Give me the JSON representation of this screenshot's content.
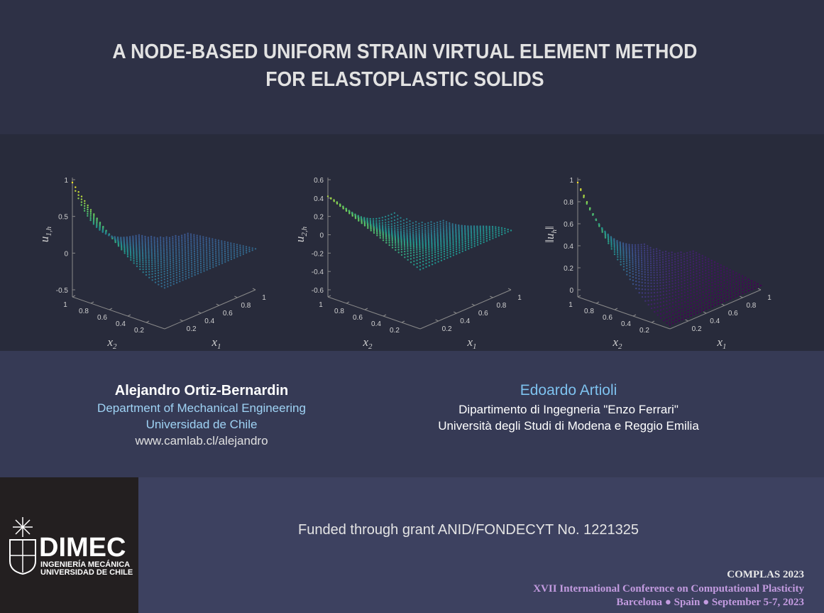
{
  "title": [
    "A NODE-BASED UNIFORM STRAIN VIRTUAL ELEMENT METHOD",
    "FOR ELASTOPLASTIC SOLIDS"
  ],
  "plots": [
    {
      "z_label": {
        "base": "u",
        "sub": "1,h"
      },
      "z_ticks": [
        1,
        0.5,
        0,
        -0.5
      ],
      "x1_ticks": [
        0.2,
        0.4,
        0.6,
        0.8,
        1
      ],
      "x2_ticks": [
        1,
        0.8,
        0.6,
        0.4,
        0.2
      ],
      "x1_label": {
        "base": "x",
        "sub": "1"
      },
      "x2_label": {
        "base": "x",
        "sub": "2"
      }
    },
    {
      "z_label": {
        "base": "u",
        "sub": "2,h"
      },
      "z_ticks": [
        0.6,
        0.4,
        0.2,
        0,
        -0.2,
        -0.4,
        -0.6
      ],
      "x1_ticks": [
        0.2,
        0.4,
        0.6,
        0.8,
        1
      ],
      "x2_ticks": [
        1,
        0.8,
        0.6,
        0.4,
        0.2
      ],
      "x1_label": {
        "base": "x",
        "sub": "1"
      },
      "x2_label": {
        "base": "x",
        "sub": "2"
      }
    },
    {
      "z_label": {
        "base": "‖u",
        "sub": "h",
        "after": "‖"
      },
      "z_ticks": [
        1,
        0.8,
        0.6,
        0.4,
        0.2,
        0
      ],
      "x1_ticks": [
        0.2,
        0.4,
        0.6,
        0.8,
        1
      ],
      "x2_ticks": [
        1,
        0.8,
        0.6,
        0.4,
        0.2
      ],
      "x1_label": {
        "base": "x",
        "sub": "1"
      },
      "x2_label": {
        "base": "x",
        "sub": "2"
      }
    }
  ],
  "authors": [
    {
      "name": "Alejandro Ortiz-Bernardin",
      "affiliation": [
        "Department of Mechanical Engineering",
        "Universidad de Chile"
      ],
      "website": "www.camlab.cl/alejandro"
    },
    {
      "name": "Edoardo Artioli",
      "affiliation": [
        "Dipartimento di Ingegneria \"Enzo Ferrari\"",
        "Università degli Studi di Modena e Reggio Emilia"
      ]
    }
  ],
  "funding": "Funded through grant ANID/FONDECYT No. 1221325",
  "logo": {
    "name": "DIMEC",
    "lines": [
      "INGENIERÍA MECÁNICA",
      "UNIVERSIDAD DE CHILE"
    ]
  },
  "conference": {
    "name": "COMPLAS 2023",
    "full": "XVII International Conference on Computational Plasticity",
    "place": "Barcelona ● Spain ●  September 5-7, 2023"
  }
}
